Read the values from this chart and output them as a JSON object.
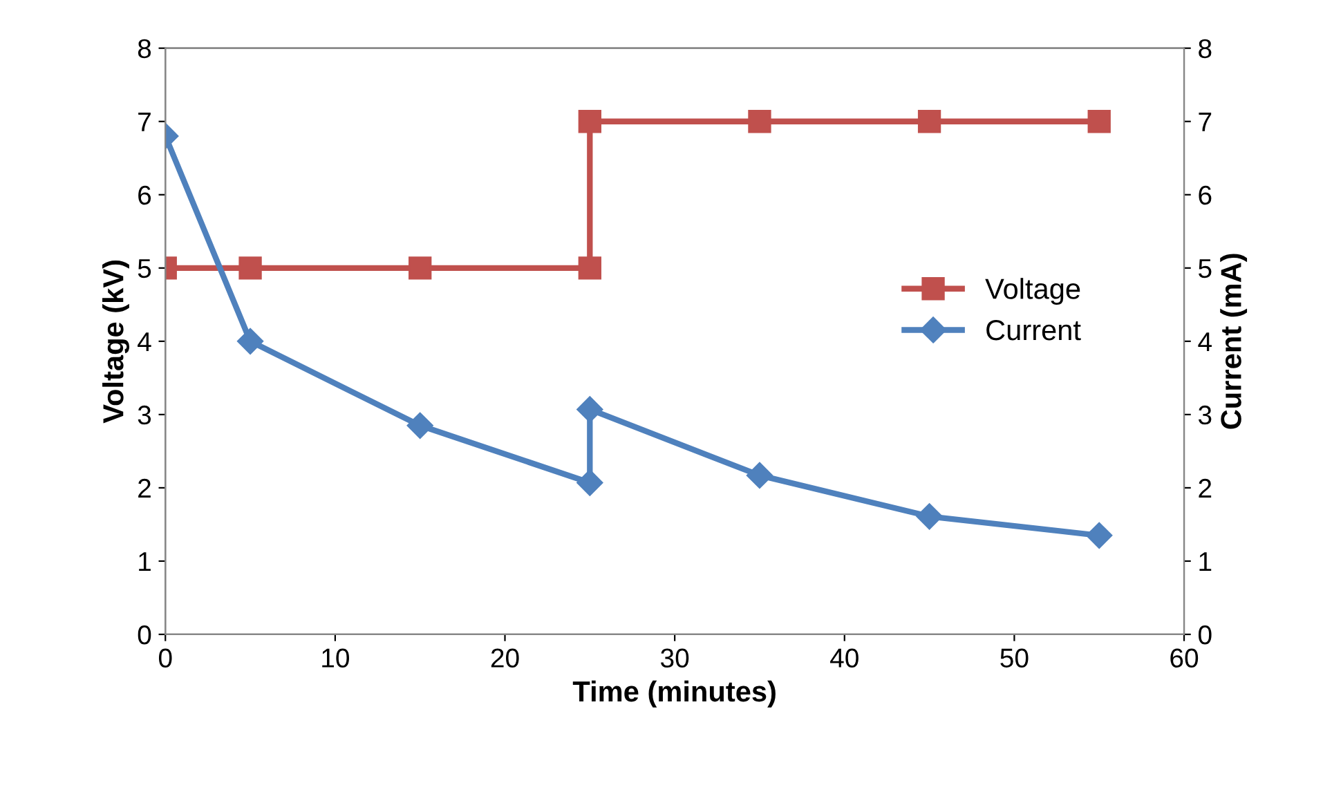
{
  "chart_data": {
    "type": "line",
    "xlabel": "Time (minutes)",
    "ylabel": "Voltage (kV)",
    "y2label": "Current (mA)",
    "xlim": [
      0,
      60
    ],
    "xticks": [
      0,
      10,
      20,
      30,
      40,
      50,
      60
    ],
    "ylim": [
      0,
      8
    ],
    "yticks": [
      0,
      1,
      2,
      3,
      4,
      5,
      6,
      7,
      8
    ],
    "y2lim": [
      0,
      8
    ],
    "y2ticks": [
      0,
      1,
      2,
      3,
      4,
      5,
      6,
      7,
      8
    ],
    "grid": false,
    "legend": "right",
    "line_style": "solid",
    "series": [
      {
        "name": "Voltage",
        "color": "#c0504d",
        "marker": "square",
        "x": [
          0,
          5,
          15,
          25,
          25,
          35,
          45,
          55
        ],
        "values": [
          5,
          5,
          5,
          5,
          7,
          7,
          7,
          7
        ]
      },
      {
        "name": "Current",
        "color": "#4f81bd",
        "marker": "diamond",
        "axis": "y2",
        "x": [
          0,
          5,
          15,
          25,
          25,
          35,
          45,
          55
        ],
        "values": [
          6.8,
          4.0,
          2.85,
          2.07,
          3.07,
          2.17,
          1.61,
          1.35
        ]
      }
    ]
  }
}
